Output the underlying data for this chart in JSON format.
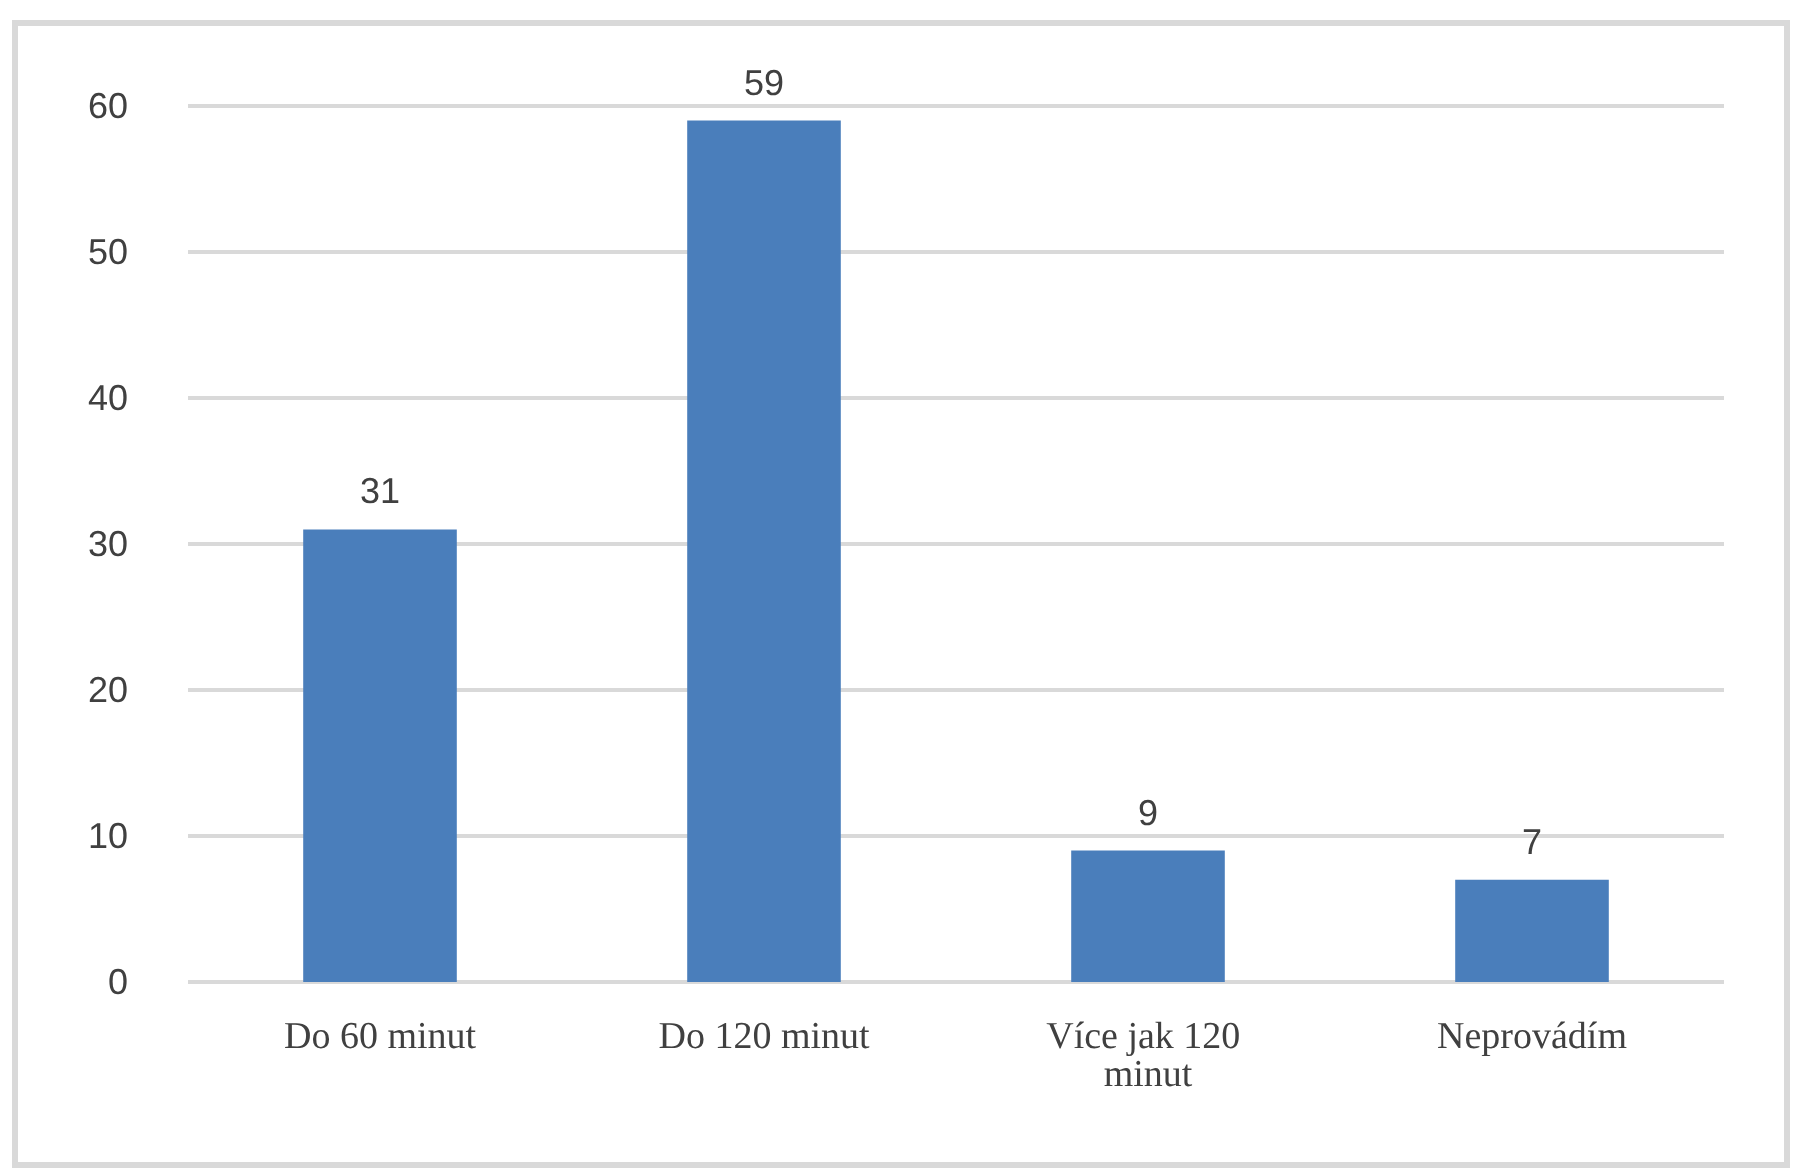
{
  "chart_data": {
    "type": "bar",
    "categories": [
      "Do 60 minut",
      "Do 120 minut",
      "Více jak 120 minut",
      "Neprovádím"
    ],
    "values": [
      31,
      59,
      9,
      7
    ],
    "color": "#4a7ebb",
    "ylim": [
      0,
      60
    ],
    "yticks": [
      0,
      10,
      20,
      30,
      40,
      50,
      60
    ],
    "grid": "y",
    "data_labels": true
  }
}
